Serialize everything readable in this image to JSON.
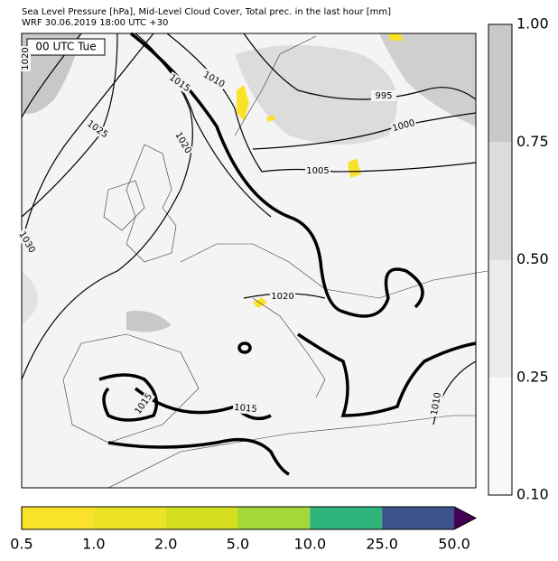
{
  "header": {
    "title": "Sea Level Pressure [hPa], Mid-Level Cloud Cover, Total prec. in the last hour [mm]",
    "subtitle": "WRF 30.06.2019 18:00 UTC +30"
  },
  "timestamp": "00 UTC Tue",
  "contour_labels": [
    "1020",
    "1015",
    "1010",
    "995",
    "1000",
    "1025",
    "1020",
    "1005",
    "1030",
    "1020",
    "1015",
    "1015",
    "1010"
  ],
  "cloud_colorbar": {
    "ticks": [
      "1.00",
      "0.75",
      "0.50",
      "0.25",
      "0.10"
    ],
    "colors": [
      "#c8c8c8",
      "#dcdcdc",
      "#ebebeb",
      "#f8f8f8"
    ]
  },
  "precip_colorbar": {
    "ticks": [
      "0.5",
      "1.0",
      "2.0",
      "5.0",
      "10.0",
      "25.0",
      "50.0"
    ],
    "colors": [
      "#fbe22a",
      "#ece323",
      "#d3df1f",
      "#a3d93b",
      "#2fb47c",
      "#3b528b",
      "#440154"
    ]
  }
}
